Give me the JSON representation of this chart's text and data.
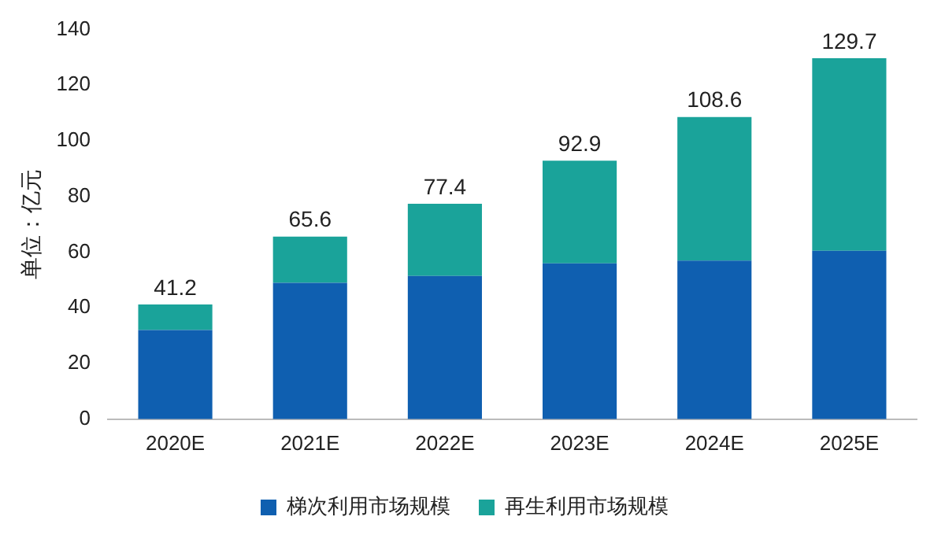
{
  "chart_data": {
    "type": "bar",
    "stacked": true,
    "ylabel": "单位：亿元",
    "categories": [
      "2020E",
      "2021E",
      "2022E",
      "2023E",
      "2024E",
      "2025E"
    ],
    "series": [
      {
        "name": "梯次利用市场规模",
        "color": "#0f5fb0",
        "values": [
          32,
          49,
          51.5,
          56,
          57,
          60.5
        ]
      },
      {
        "name": "再生利用市场规模",
        "color": "#1aa39a",
        "values": [
          9.2,
          16.6,
          25.9,
          36.9,
          51.6,
          69.2
        ]
      }
    ],
    "totals": [
      "41.2",
      "65.6",
      "77.4",
      "92.9",
      "108.6",
      "129.7"
    ],
    "ylim": [
      0,
      140
    ],
    "yticks": [
      0,
      20,
      40,
      60,
      80,
      100,
      120,
      140
    ],
    "grid": false,
    "legend": "bottom"
  }
}
